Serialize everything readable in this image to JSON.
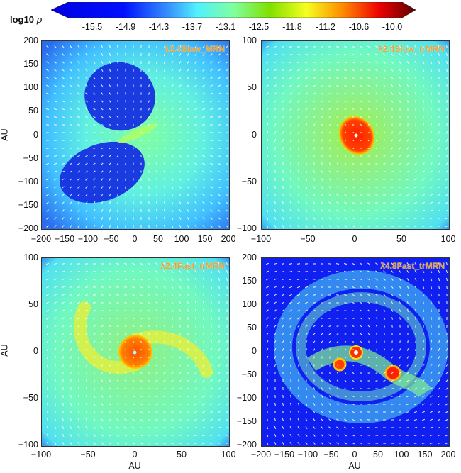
{
  "colorbar": {
    "label": "log10",
    "label_symbol": "ρ",
    "ticks": [
      "-15.5",
      "-14.9",
      "-14.3",
      "-13.7",
      "-13.1",
      "-12.5",
      "-11.8",
      "-11.2",
      "-10.6",
      "-10.0"
    ],
    "colors": [
      "#0000e0",
      "#1a5cff",
      "#4cd8ff",
      "#80ffb0",
      "#7ce000",
      "#f0ff20",
      "#ff9a00",
      "#ff3000",
      "#e00000",
      "#6a0000"
    ]
  },
  "panels": [
    {
      "title": "λ2.4Slow_MRN",
      "xlim": [
        -200,
        200
      ],
      "ylim": [
        -200,
        200
      ],
      "xticks": [
        "−200",
        "−150",
        "−100",
        "−50",
        "0",
        "50",
        "100",
        "150",
        "200"
      ],
      "yticks": [
        "200",
        "150",
        "100",
        "50",
        "0",
        "−50",
        "−100",
        "−150",
        "−200"
      ],
      "ylabel": "AU",
      "xlabel": ""
    },
    {
      "title": "λ2.4Slow_trMRN",
      "xlim": [
        -100,
        100
      ],
      "ylim": [
        -100,
        100
      ],
      "xticks": [
        "−100",
        "−50",
        "0",
        "50",
        "100"
      ],
      "yticks": [
        "100",
        "50",
        "0",
        "−50",
        "−100"
      ],
      "ylabel": "",
      "xlabel": ""
    },
    {
      "title": "λ2.4Fast_trMRN",
      "xlim": [
        -100,
        100
      ],
      "ylim": [
        -100,
        100
      ],
      "xticks": [
        "−100",
        "−50",
        "0",
        "50",
        "100"
      ],
      "yticks": [
        "100",
        "50",
        "0",
        "−50",
        "−100"
      ],
      "ylabel": "AU",
      "xlabel": "AU"
    },
    {
      "title": "λ4.8Fast_trMRN",
      "xlim": [
        -200,
        200
      ],
      "ylim": [
        -200,
        200
      ],
      "xticks": [
        "−200",
        "−150",
        "−100",
        "−50",
        "0",
        "50",
        "100",
        "150",
        "200"
      ],
      "yticks": [
        "200",
        "150",
        "100",
        "50",
        "0",
        "−50",
        "−100",
        "−150",
        "−200"
      ],
      "ylabel": "",
      "xlabel": "AU"
    }
  ],
  "chart_data": {
    "type": "heatmap",
    "title": "",
    "colorbar_label": "log10 ρ",
    "colorbar_range": [
      -15.8,
      -10.0
    ],
    "colorbar_ticks": [
      -15.5,
      -14.9,
      -14.3,
      -13.7,
      -13.1,
      -12.5,
      -11.8,
      -11.2,
      -10.6,
      -10.0
    ],
    "overlay": "velocity vectors (white arrows)",
    "subplots": [
      {
        "title": "λ2.4Slow_MRN",
        "xlabel": "",
        "ylabel": "AU",
        "xlim": [
          -200,
          200
        ],
        "ylim": [
          -200,
          200
        ],
        "xticks": [
          -200,
          -150,
          -100,
          -50,
          0,
          50,
          100,
          150,
          200
        ],
        "yticks": [
          -200,
          -150,
          -100,
          -50,
          0,
          50,
          100,
          150,
          200
        ],
        "features": "bipolar low-density cavities (log10 ρ ≈ -15.5) above-left and below-left, dense outflow lobe near origin (≈ -12.5), background ≈ -14.3 to -13.7"
      },
      {
        "title": "λ2.4Slow_trMRN",
        "xlabel": "",
        "ylabel": "",
        "xlim": [
          -100,
          100
        ],
        "ylim": [
          -100,
          100
        ],
        "xticks": [
          -100,
          -50,
          0,
          50,
          100
        ],
        "yticks": [
          -100,
          -50,
          0,
          50,
          100
        ],
        "features": "compact central disk radius ≈ 15 AU (log10 ρ ≈ -11.2 to -10.6), surrounding envelope ≈ -13.1"
      },
      {
        "title": "λ2.4Fast_trMRN",
        "xlabel": "AU",
        "ylabel": "AU",
        "xlim": [
          -100,
          100
        ],
        "ylim": [
          -100,
          100
        ],
        "xticks": [
          -100,
          -50,
          0,
          50,
          100
        ],
        "yticks": [
          -100,
          -50,
          0,
          50,
          100
        ],
        "features": "central disk radius ≈ 20 AU (≈ -11.2), two spiral arms extending to ±80 AU (≈ -12.5)"
      },
      {
        "title": "λ4.8Fast_trMRN",
        "xlabel": "AU",
        "ylabel": "",
        "xlim": [
          -200,
          200
        ],
        "ylim": [
          -200,
          200
        ],
        "xticks": [
          -200,
          -150,
          -100,
          -50,
          0,
          50,
          100,
          150,
          200
        ],
        "yticks": [
          -200,
          -150,
          -100,
          -50,
          0,
          50,
          100,
          150,
          200
        ],
        "features": "fragmented: three dense clumps at approx (0,0), (-35,-25), (80,-45) with log10 ρ ≈ -11 to -10.6; ring/arc structure ≈ -14.3; background ≈ -15.5"
      }
    ]
  }
}
